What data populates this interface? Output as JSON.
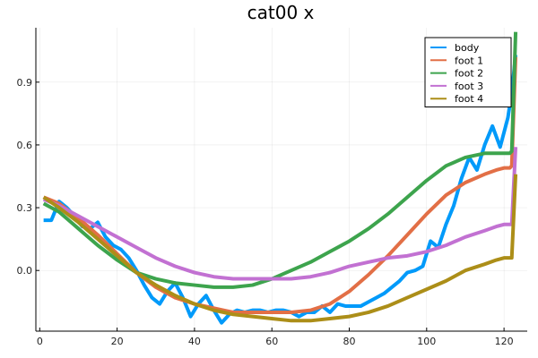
{
  "chart_data": {
    "type": "line",
    "title": "cat00 x",
    "xlabel": "",
    "ylabel": "",
    "xlim": [
      -1,
      126
    ],
    "ylim": [
      -0.29,
      1.16
    ],
    "xticks": [
      0,
      20,
      40,
      60,
      80,
      100,
      120
    ],
    "yticks": [
      0.0,
      0.3,
      0.6,
      0.9
    ],
    "ytick_labels": [
      "0.0",
      "0.3",
      "0.6",
      "0.9"
    ],
    "grid": true,
    "legend_position": "top-right",
    "series": [
      {
        "name": "body",
        "color": "#009AFA",
        "x": [
          1,
          3,
          5,
          7,
          9,
          11,
          13,
          15,
          17,
          19,
          21,
          23,
          25,
          27,
          29,
          31,
          33,
          35,
          37,
          39,
          41,
          43,
          45,
          47,
          49,
          51,
          53,
          55,
          57,
          59,
          61,
          63,
          65,
          67,
          69,
          71,
          73,
          75,
          77,
          79,
          81,
          83,
          85,
          87,
          89,
          91,
          93,
          95,
          97,
          99,
          101,
          103,
          105,
          107,
          109,
          111,
          113,
          115,
          117,
          119,
          121,
          122,
          123
        ],
        "y": [
          0.24,
          0.24,
          0.33,
          0.3,
          0.26,
          0.21,
          0.2,
          0.23,
          0.16,
          0.12,
          0.1,
          0.06,
          0.0,
          -0.07,
          -0.13,
          -0.16,
          -0.1,
          -0.06,
          -0.13,
          -0.22,
          -0.16,
          -0.12,
          -0.19,
          -0.25,
          -0.21,
          -0.19,
          -0.2,
          -0.19,
          -0.19,
          -0.2,
          -0.19,
          -0.19,
          -0.2,
          -0.22,
          -0.2,
          -0.2,
          -0.17,
          -0.2,
          -0.16,
          -0.17,
          -0.17,
          -0.17,
          -0.15,
          -0.13,
          -0.11,
          -0.08,
          -0.05,
          -0.01,
          0.0,
          0.02,
          0.14,
          0.11,
          0.22,
          0.31,
          0.44,
          0.54,
          0.48,
          0.6,
          0.69,
          0.59,
          0.73,
          0.85,
          1.03
        ]
      },
      {
        "name": "foot 1",
        "color": "#E26F46",
        "x": [
          1,
          5,
          10,
          15,
          20,
          25,
          30,
          35,
          40,
          45,
          50,
          55,
          60,
          65,
          70,
          75,
          80,
          85,
          90,
          95,
          100,
          105,
          110,
          115,
          118,
          120,
          121.5,
          122,
          123
        ],
        "y": [
          0.35,
          0.32,
          0.25,
          0.17,
          0.08,
          -0.01,
          -0.08,
          -0.13,
          -0.16,
          -0.18,
          -0.2,
          -0.2,
          -0.2,
          -0.2,
          -0.19,
          -0.16,
          -0.1,
          -0.02,
          0.07,
          0.17,
          0.27,
          0.36,
          0.42,
          0.46,
          0.48,
          0.49,
          0.49,
          0.5,
          1.02
        ]
      },
      {
        "name": "foot 2",
        "color": "#3DA44D",
        "x": [
          1,
          5,
          10,
          15,
          20,
          25,
          30,
          35,
          40,
          45,
          50,
          55,
          60,
          65,
          70,
          75,
          80,
          85,
          90,
          95,
          100,
          105,
          110,
          115,
          118,
          120,
          121.5,
          122,
          123
        ],
        "y": [
          0.32,
          0.28,
          0.2,
          0.12,
          0.05,
          -0.01,
          -0.04,
          -0.06,
          -0.07,
          -0.08,
          -0.08,
          -0.07,
          -0.04,
          0.0,
          0.04,
          0.09,
          0.14,
          0.2,
          0.27,
          0.35,
          0.43,
          0.5,
          0.54,
          0.56,
          0.56,
          0.56,
          0.56,
          0.57,
          1.14
        ]
      },
      {
        "name": "foot 3",
        "color": "#C271D2",
        "x": [
          1,
          5,
          10,
          15,
          20,
          25,
          30,
          35,
          40,
          45,
          50,
          55,
          60,
          65,
          70,
          75,
          80,
          85,
          90,
          95,
          100,
          105,
          110,
          115,
          118,
          120,
          121.5,
          122,
          123
        ],
        "y": [
          0.34,
          0.31,
          0.26,
          0.21,
          0.16,
          0.11,
          0.06,
          0.02,
          -0.01,
          -0.03,
          -0.04,
          -0.04,
          -0.04,
          -0.04,
          -0.03,
          -0.01,
          0.02,
          0.04,
          0.06,
          0.07,
          0.09,
          0.12,
          0.16,
          0.19,
          0.21,
          0.22,
          0.22,
          0.22,
          0.59
        ]
      },
      {
        "name": "foot 4",
        "color": "#AC8E18",
        "x": [
          1,
          5,
          10,
          15,
          20,
          25,
          30,
          35,
          40,
          45,
          50,
          55,
          60,
          65,
          70,
          75,
          80,
          85,
          90,
          95,
          100,
          105,
          110,
          115,
          118,
          120,
          121.5,
          122,
          123
        ],
        "y": [
          0.35,
          0.3,
          0.23,
          0.15,
          0.07,
          -0.01,
          -0.07,
          -0.12,
          -0.16,
          -0.19,
          -0.21,
          -0.22,
          -0.23,
          -0.24,
          -0.24,
          -0.23,
          -0.22,
          -0.2,
          -0.17,
          -0.13,
          -0.09,
          -0.05,
          0.0,
          0.03,
          0.05,
          0.06,
          0.06,
          0.06,
          0.46
        ]
      }
    ]
  }
}
